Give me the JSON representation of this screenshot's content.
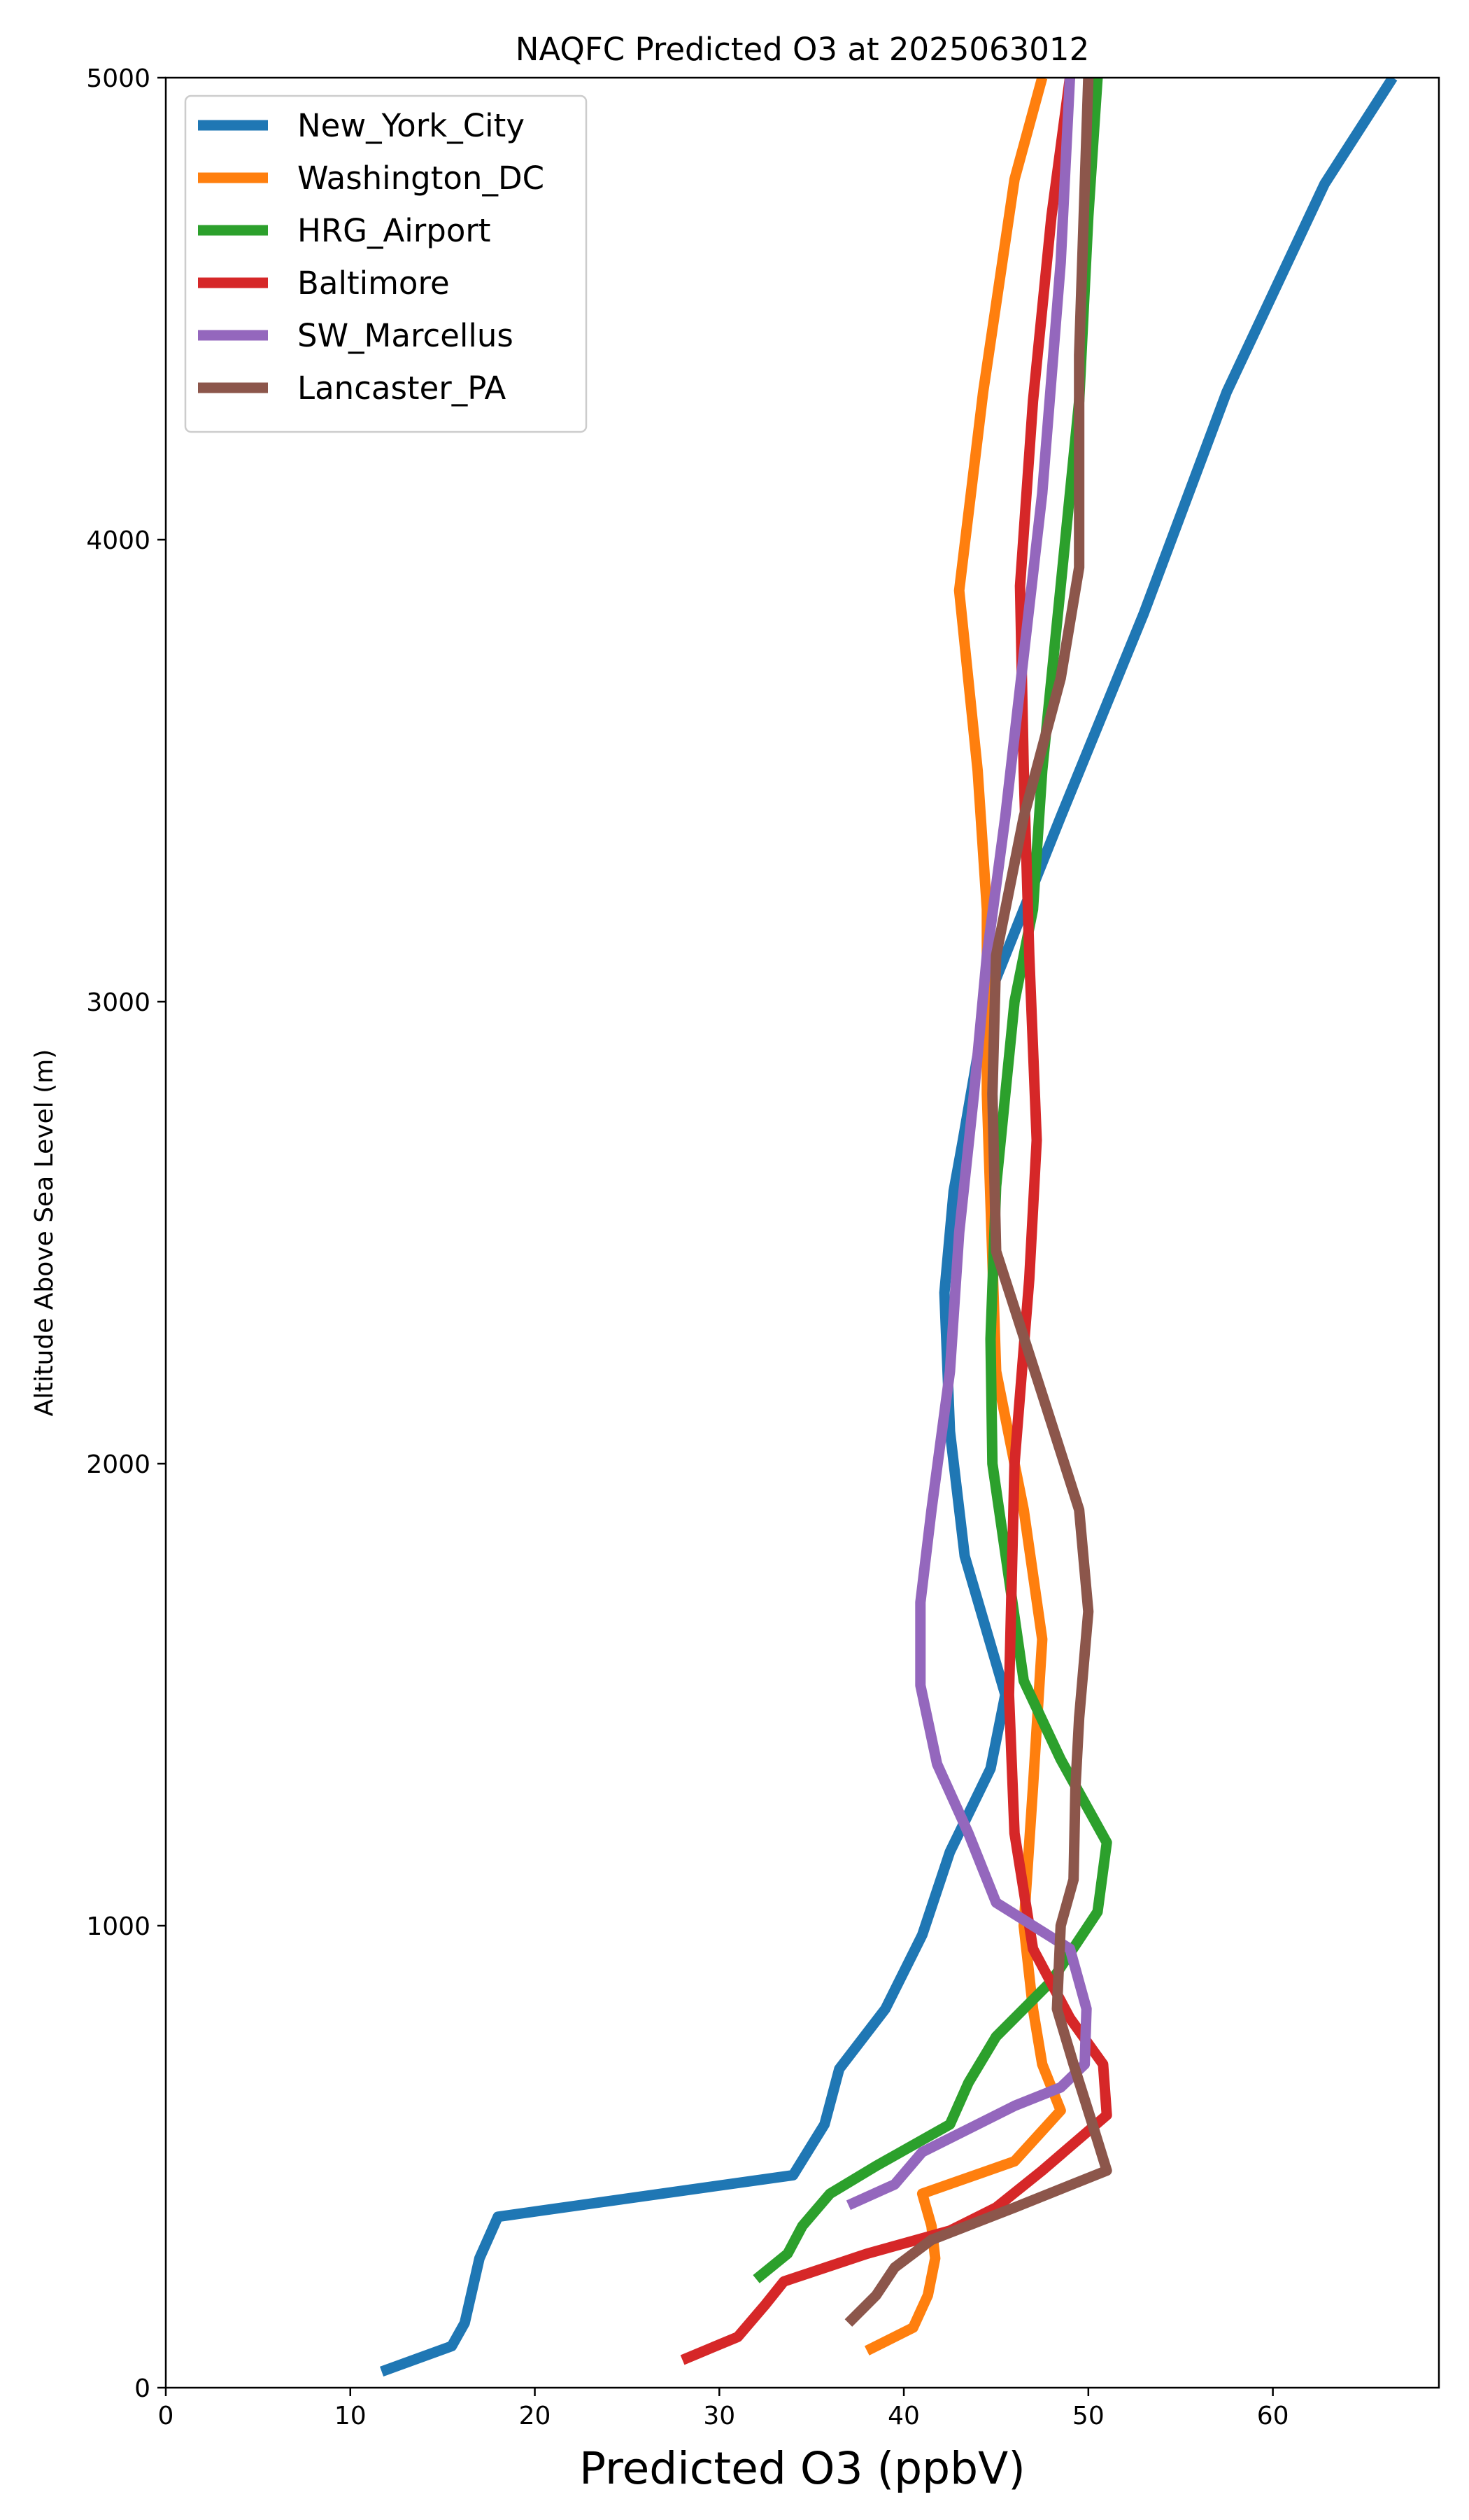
{
  "chart_data": {
    "type": "line",
    "title": "NAQFC Predicted O3 at 2025063012",
    "xlabel": "Predicted O3 (ppbV)",
    "ylabel": "Altitude Above Sea Level (m)",
    "xlim": [
      0,
      69
    ],
    "ylim": [
      0,
      5000
    ],
    "xticks": [
      0,
      10,
      20,
      30,
      40,
      50,
      60
    ],
    "yticks": [
      0,
      1000,
      2000,
      3000,
      4000,
      5000
    ],
    "grid": false,
    "legend_position": "top-left",
    "series": [
      {
        "name": "New_York_City",
        "color": "#1f77b4",
        "points": [
          [
            11.7,
            35
          ],
          [
            15.5,
            90
          ],
          [
            16.2,
            140
          ],
          [
            17.0,
            280
          ],
          [
            18.0,
            370
          ],
          [
            34.0,
            460
          ],
          [
            35.7,
            570
          ],
          [
            36.5,
            690
          ],
          [
            39.0,
            820
          ],
          [
            41.0,
            980
          ],
          [
            42.5,
            1160
          ],
          [
            44.7,
            1340
          ],
          [
            45.5,
            1500
          ],
          [
            43.3,
            1800
          ],
          [
            42.5,
            2070
          ],
          [
            42.2,
            2370
          ],
          [
            42.7,
            2590
          ],
          [
            43.2,
            2700
          ],
          [
            44.5,
            3000
          ],
          [
            46.5,
            3200
          ],
          [
            48.5,
            3400
          ],
          [
            53.0,
            3840
          ],
          [
            57.5,
            4320
          ],
          [
            62.8,
            4770
          ],
          [
            66.5,
            5000
          ]
        ]
      },
      {
        "name": "Washington_DC",
        "color": "#ff7f0e",
        "points": [
          [
            38.0,
            80
          ],
          [
            40.5,
            130
          ],
          [
            41.3,
            200
          ],
          [
            41.7,
            280
          ],
          [
            41.5,
            350
          ],
          [
            41.0,
            420
          ],
          [
            46.0,
            490
          ],
          [
            48.5,
            600
          ],
          [
            47.5,
            700
          ],
          [
            47.0,
            820
          ],
          [
            46.5,
            1000
          ],
          [
            47.0,
            1300
          ],
          [
            47.5,
            1620
          ],
          [
            46.5,
            1900
          ],
          [
            45.0,
            2200
          ],
          [
            44.5,
            2800
          ],
          [
            44.5,
            3200
          ],
          [
            44.0,
            3500
          ],
          [
            43.0,
            3890
          ],
          [
            44.3,
            4320
          ],
          [
            46.0,
            4780
          ],
          [
            47.5,
            5000
          ]
        ]
      },
      {
        "name": "HRG_Airport",
        "color": "#2ca02c",
        "points": [
          [
            32.0,
            235
          ],
          [
            33.7,
            290
          ],
          [
            34.5,
            350
          ],
          [
            36.0,
            420
          ],
          [
            38.5,
            480
          ],
          [
            42.5,
            570
          ],
          [
            43.5,
            660
          ],
          [
            45.0,
            760
          ],
          [
            48.0,
            880
          ],
          [
            50.5,
            1030
          ],
          [
            51.0,
            1180
          ],
          [
            48.5,
            1360
          ],
          [
            46.5,
            1530
          ],
          [
            44.8,
            2000
          ],
          [
            44.7,
            2270
          ],
          [
            45.0,
            2600
          ],
          [
            46.0,
            3000
          ],
          [
            47.0,
            3200
          ],
          [
            47.5,
            3500
          ],
          [
            48.5,
            3900
          ],
          [
            49.5,
            4300
          ],
          [
            50.0,
            4700
          ],
          [
            50.5,
            5000
          ]
        ]
      },
      {
        "name": "Baltimore",
        "color": "#d62728",
        "points": [
          [
            28.0,
            60
          ],
          [
            31.0,
            110
          ],
          [
            32.5,
            180
          ],
          [
            33.5,
            230
          ],
          [
            38.0,
            290
          ],
          [
            42.5,
            340
          ],
          [
            45.0,
            390
          ],
          [
            47.5,
            470
          ],
          [
            51.0,
            590
          ],
          [
            50.8,
            700
          ],
          [
            49.0,
            800
          ],
          [
            47.0,
            950
          ],
          [
            46.0,
            1200
          ],
          [
            45.7,
            1500
          ],
          [
            46.0,
            2000
          ],
          [
            46.8,
            2400
          ],
          [
            47.2,
            2700
          ],
          [
            46.8,
            3100
          ],
          [
            46.5,
            3500
          ],
          [
            46.3,
            3900
          ],
          [
            47.0,
            4300
          ],
          [
            48.0,
            4700
          ],
          [
            49.0,
            5000
          ]
        ]
      },
      {
        "name": "SW_Marcellus",
        "color": "#9467bd",
        "points": [
          [
            37.0,
            395
          ],
          [
            39.5,
            440
          ],
          [
            41.0,
            510
          ],
          [
            44.0,
            570
          ],
          [
            46.0,
            610
          ],
          [
            48.5,
            650
          ],
          [
            49.8,
            700
          ],
          [
            49.9,
            820
          ],
          [
            49.0,
            950
          ],
          [
            45.0,
            1050
          ],
          [
            43.5,
            1200
          ],
          [
            41.8,
            1350
          ],
          [
            40.9,
            1520
          ],
          [
            40.9,
            1700
          ],
          [
            41.5,
            1900
          ],
          [
            42.5,
            2200
          ],
          [
            43.0,
            2500
          ],
          [
            43.8,
            2800
          ],
          [
            44.5,
            3100
          ],
          [
            45.5,
            3400
          ],
          [
            46.5,
            3750
          ],
          [
            47.5,
            4100
          ],
          [
            48.5,
            4600
          ],
          [
            49.0,
            5000
          ]
        ]
      },
      {
        "name": "Lancaster_PA",
        "color": "#8c564b",
        "points": [
          [
            37.0,
            140
          ],
          [
            38.5,
            200
          ],
          [
            39.5,
            260
          ],
          [
            41.5,
            320
          ],
          [
            46.0,
            390
          ],
          [
            51.0,
            470
          ],
          [
            50.3,
            560
          ],
          [
            49.2,
            700
          ],
          [
            48.3,
            820
          ],
          [
            48.5,
            1000
          ],
          [
            49.2,
            1100
          ],
          [
            49.3,
            1300
          ],
          [
            49.5,
            1450
          ],
          [
            50.0,
            1680
          ],
          [
            49.5,
            1900
          ],
          [
            47.5,
            2150
          ],
          [
            45.0,
            2460
          ],
          [
            44.8,
            2800
          ],
          [
            45.0,
            3100
          ],
          [
            46.5,
            3400
          ],
          [
            48.5,
            3700
          ],
          [
            49.5,
            3940
          ],
          [
            49.5,
            4400
          ],
          [
            50.0,
            5000
          ]
        ]
      }
    ]
  }
}
